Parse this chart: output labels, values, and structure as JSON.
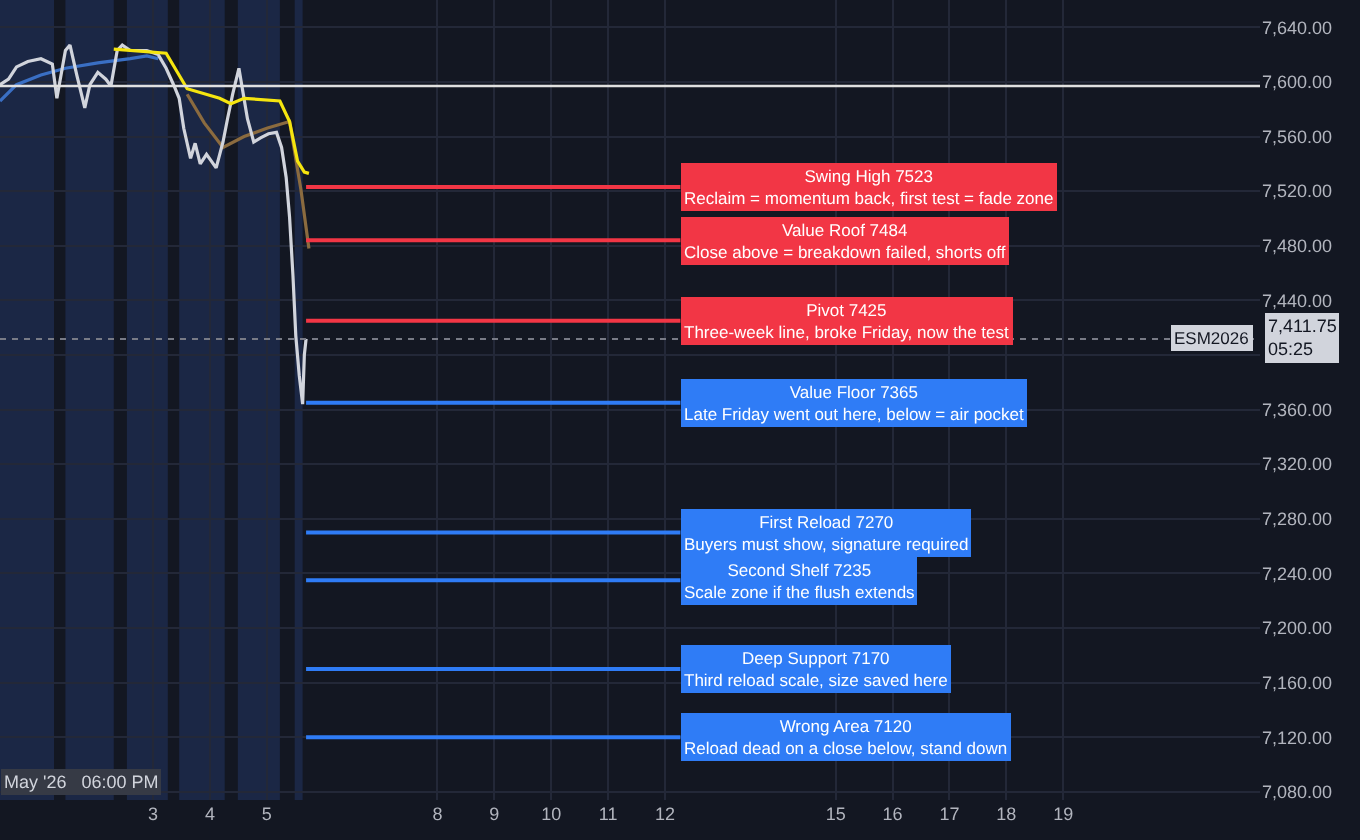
{
  "chart_data": {
    "type": "line",
    "x": [
      "2026-04-30T07:26",
      "2026-04-30T11:02",
      "2026-04-30T14:24",
      "2026-04-30T19:12",
      "2026-05-01T00:43",
      "2026-05-01T05:31",
      "2026-05-01T07:26",
      "2026-05-01T11:02",
      "2026-05-01T12:58",
      "2026-05-01T15:50",
      "2026-05-01T19:12",
      "2026-05-01T21:22",
      "2026-05-02T00:43",
      "2026-05-02T04:05",
      "2026-05-02T06:14",
      "2026-05-02T08:53",
      "2026-05-02T11:02",
      "2026-05-02T14:24",
      "2026-05-02T21:22",
      "2026-05-03T02:10",
      "2026-05-03T05:31",
      "2026-05-03T08:53",
      "2026-05-03T11:02",
      "2026-05-03T12:58",
      "2026-05-03T15:50",
      "2026-05-03T17:46",
      "2026-05-03T19:55",
      "2026-05-03T22:34",
      "2026-05-04T02:38",
      "2026-05-04T05:31",
      "2026-05-04T07:26",
      "2026-05-04T09:36",
      "2026-05-04T12:14",
      "2026-05-04T13:41",
      "2026-05-04T15:50",
      "2026-05-04T18:29",
      "2026-05-04T21:22",
      "2026-05-05T00:43",
      "2026-05-05T04:05",
      "2026-05-05T06:14",
      "2026-05-05T08:10",
      "2026-05-05T09:36",
      "2026-05-05T11:02",
      "2026-05-05T12:14",
      "2026-05-05T13:41",
      "2026-05-05T15:07",
      "2026-05-05T15:50",
      "2026-05-05T16:34"
    ],
    "series": [
      {
        "color": "#3a6fc4",
        "x": [
          "2026-04-30T07:26",
          "2026-04-30T14:24",
          "2026-05-01T00:43",
          "2026-05-01T11:02",
          "2026-05-02T00:43",
          "2026-05-02T14:24",
          "2026-05-02T21:22",
          "2026-05-03T02:10"
        ],
        "values": [
          7586,
          7598,
          7605,
          7610,
          7614,
          7617,
          7619,
          7617
        ]
      },
      {
        "color": "#8b6b3f",
        "x": [
          "2026-05-03T14:24",
          "2026-05-03T21:36",
          "2026-05-04T05:31",
          "2026-05-04T14:24",
          "2026-05-05T00:00",
          "2026-05-05T09:36",
          "2026-05-05T14:24",
          "2026-05-05T17:46"
        ],
        "values": [
          7591,
          7570,
          7552,
          7560,
          7566,
          7571,
          7521,
          7478
        ]
      },
      {
        "color": "#d1d4dc",
        "values": [
          7598,
          7602,
          7611,
          7615,
          7617,
          7613,
          7588,
          7623,
          7627,
          7605,
          7581,
          7598,
          7607,
          7602,
          7597,
          7623,
          7627,
          7623,
          7623,
          7620,
          7610,
          7597,
          7588,
          7566,
          7544,
          7555,
          7540,
          7547,
          7537,
          7556,
          7573,
          7591,
          7610,
          7595,
          7573,
          7556,
          7559,
          7562,
          7563,
          7552,
          7530,
          7501,
          7458,
          7414,
          7385,
          7364,
          7400,
          7411.75
        ]
      },
      {
        "color": "#f5e50f",
        "x": [
          "2026-05-02T07:26",
          "2026-05-03T05:31",
          "2026-05-03T14:24",
          "2026-05-04T04:05",
          "2026-05-04T08:53",
          "2026-05-04T14:24",
          "2026-05-05T05:31",
          "2026-05-05T09:36",
          "2026-05-05T12:58",
          "2026-05-05T15:50",
          "2026-05-05T17:46"
        ],
        "values": [
          7624,
          7621,
          7595,
          7588,
          7584,
          7588,
          7586,
          7571,
          7542,
          7534,
          7533
        ]
      }
    ],
    "marker": "none",
    "line_style": "solid",
    "grid": true,
    "xlim": [
      "2026-04-30T07:26",
      "2026-05-22T11:02"
    ],
    "ylim": [
      7074,
      7660
    ],
    "xticks": [
      {
        "value": "2026-05-03",
        "label": "3"
      },
      {
        "value": "2026-05-04",
        "label": "4"
      },
      {
        "value": "2026-05-05",
        "label": "5"
      },
      {
        "value": "2026-05-08",
        "label": "8"
      },
      {
        "value": "2026-05-09",
        "label": "9"
      },
      {
        "value": "2026-05-10",
        "label": "10"
      },
      {
        "value": "2026-05-11",
        "label": "11"
      },
      {
        "value": "2026-05-12",
        "label": "12"
      },
      {
        "value": "2026-05-15",
        "label": "15"
      },
      {
        "value": "2026-05-16",
        "label": "16"
      },
      {
        "value": "2026-05-17",
        "label": "17"
      },
      {
        "value": "2026-05-18",
        "label": "18"
      },
      {
        "value": "2026-05-19",
        "label": "19"
      }
    ],
    "yticks": [
      {
        "value": 7080,
        "label": "7,080.00"
      },
      {
        "value": 7120,
        "label": "7,120.00"
      },
      {
        "value": 7160,
        "label": "7,160.00"
      },
      {
        "value": 7200,
        "label": "7,200.00"
      },
      {
        "value": 7240,
        "label": "7,240.00"
      },
      {
        "value": 7280,
        "label": "7,280.00"
      },
      {
        "value": 7320,
        "label": "7,320.00"
      },
      {
        "value": 7360,
        "label": "7,360.00"
      },
      {
        "value": 7400,
        "label": null
      },
      {
        "value": 7440,
        "label": "7,440.00"
      },
      {
        "value": 7480,
        "label": "7,480.00"
      },
      {
        "value": 7520,
        "label": "7,520.00"
      },
      {
        "value": 7560,
        "label": "7,560.00"
      },
      {
        "value": 7600,
        "label": "7,600.00"
      },
      {
        "value": 7640,
        "label": "7,640.00"
      }
    ],
    "ref_lines": [
      {
        "axis": "y",
        "value": 7597,
        "color": "#e0e0e0"
      },
      {
        "axis": "y",
        "value": 7411.75,
        "label": "ESM2026",
        "color": "#787b86",
        "line_style": "dotted"
      },
      {
        "axis": "y",
        "value": 7523,
        "label": "Swing High 7523\nReclaim = momentum back, first test = fade zone",
        "color": "#f23645"
      },
      {
        "axis": "y",
        "value": 7484,
        "label": "Value Roof 7484\nClose above = breakdown failed, shorts off",
        "color": "#f23645"
      },
      {
        "axis": "y",
        "value": 7425,
        "label": "Pivot 7425\nThree-week line, broke Friday, now the test",
        "color": "#f23645"
      },
      {
        "axis": "y",
        "value": 7365,
        "label": "Value Floor 7365\nLate Friday went out here, below = air pocket",
        "color": "#2f7cf6"
      },
      {
        "axis": "y",
        "value": 7270,
        "label": "First Reload 7270\nBuyers must show, signature required",
        "color": "#2f7cf6"
      },
      {
        "axis": "y",
        "value": 7235,
        "label": "Second Shelf 7235\nScale zone if the flush extends",
        "color": "#2f7cf6"
      },
      {
        "axis": "y",
        "value": 7170,
        "label": "Deep Support 7170\nThird reload scale, size saved here",
        "color": "#2f7cf6"
      },
      {
        "axis": "y",
        "value": 7120,
        "label": "Wrong Area 7120\nReload dead on a close below, stand down",
        "color": "#2f7cf6"
      }
    ],
    "bands": [
      {
        "axis": "x",
        "from": "2026-04-30T07:26",
        "to": "2026-05-01T06:14",
        "color": "#1b2745"
      },
      {
        "axis": "x",
        "from": "2026-05-01T11:02",
        "to": "2026-05-02T07:26",
        "color": "#1b2745"
      },
      {
        "axis": "x",
        "from": "2026-05-02T12:58",
        "to": "2026-05-03T06:14",
        "color": "#1b2745"
      },
      {
        "axis": "x",
        "from": "2026-05-03T11:02",
        "to": "2026-05-04T06:14",
        "color": "#1b2745"
      },
      {
        "axis": "x",
        "from": "2026-05-04T11:46",
        "to": "2026-05-05T05:31",
        "color": "#1b2745"
      },
      {
        "axis": "x",
        "from": "2026-05-05T11:46",
        "to": "2026-05-05T15:07",
        "color": "#1b2745"
      }
    ],
    "annotations": [
      "May '26   06:00 PM",
      {
        "text": "7,411.75\n05:25",
        "y": 7411.75
      }
    ]
  }
}
